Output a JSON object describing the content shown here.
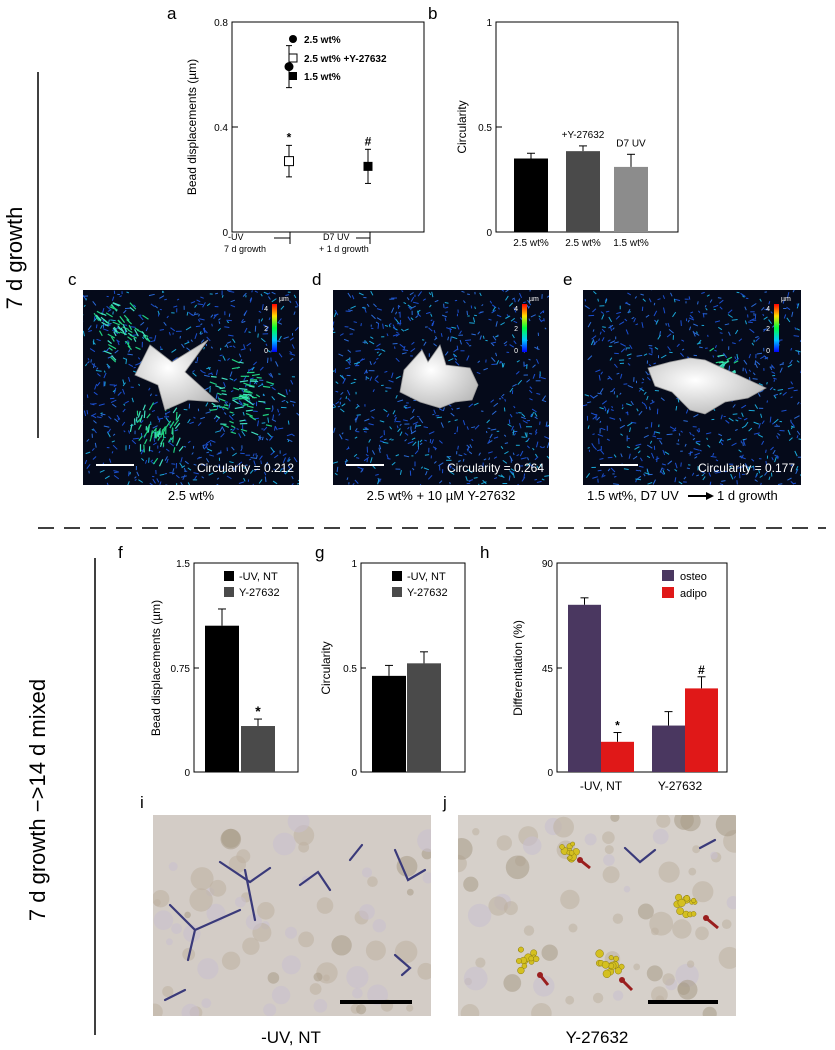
{
  "section_labels": {
    "top": "7 d growth",
    "bottom": "7 d growth −>14 d mixed"
  },
  "panel_letters": [
    "a",
    "b",
    "c",
    "d",
    "e",
    "f",
    "g",
    "h",
    "i",
    "j"
  ],
  "panel_c": {
    "circularity_text": "Circularity = 0.212",
    "caption": "2.5 wt%"
  },
  "panel_d": {
    "circularity_text": "Circularity = 0.264",
    "caption": "2.5 wt% + 10 µM Y-27632"
  },
  "panel_e": {
    "circularity_text": "Circularity = 0.177",
    "caption_main": "1.5 wt%, D7 UV",
    "caption_tail": "1 d growth"
  },
  "colorbar": {
    "unit": "µm",
    "ticks": [
      "4",
      "2",
      "0"
    ]
  },
  "panel_i": {
    "caption": "-UV, NT"
  },
  "panel_j": {
    "caption": "Y-27632"
  },
  "colors": {
    "osteo": "#4a3760",
    "adipo": "#e01818",
    "black": "#000000",
    "dark_gray": "#4a4a4a",
    "light_gray": "#8c8c8c",
    "ecm_purple": "#3a3a7a",
    "lipid_yellow": "#d4c020",
    "arrow_red": "#9a1e1e"
  },
  "chart_data": [
    {
      "panel": "a",
      "type": "scatter",
      "ylabel": "Bead displacements (µm)",
      "ylim": [
        0,
        0.8
      ],
      "yticks": [
        "0",
        "0.4",
        "0.8"
      ],
      "x_group_labels": [
        {
          "line1": "-UV",
          "line2": "7 d growth"
        },
        {
          "line1": "D7 UV",
          "line2": "+ 1 d growth"
        }
      ],
      "series": [
        {
          "name": "2.5 wt%",
          "marker": "filled-circle",
          "group": 0,
          "y": 0.63,
          "err": 0.08,
          "annotation": ""
        },
        {
          "name": "2.5 wt%  +Y-27632",
          "marker": "open-square",
          "group": 0,
          "y": 0.27,
          "err": 0.06,
          "annotation": "*"
        },
        {
          "name": "1.5 wt%",
          "marker": "filled-square",
          "group": 1,
          "y": 0.25,
          "err": 0.065,
          "annotation": "#"
        }
      ]
    },
    {
      "panel": "b",
      "type": "bar",
      "ylabel": "Circularity",
      "ylim": [
        0,
        1
      ],
      "yticks": [
        "0",
        "0.5",
        "1"
      ],
      "categories": [
        "2.5 wt%",
        "2.5 wt%",
        "1.5 wt%"
      ],
      "values": [
        0.35,
        0.385,
        0.31
      ],
      "errors": [
        0.025,
        0.025,
        0.06
      ],
      "bar_annotations": [
        "",
        "+Y-27632",
        "D7 UV"
      ]
    },
    {
      "panel": "f",
      "type": "bar",
      "ylabel": "Bead displacements (µm)",
      "ylim": [
        0,
        1.5
      ],
      "yticks": [
        "0",
        "0.75",
        "1.5"
      ],
      "legend": [
        "-UV, NT",
        "Y-27632"
      ],
      "values": [
        1.05,
        0.33
      ],
      "errors": [
        0.12,
        0.05
      ],
      "bar_annotations": [
        "",
        "*"
      ]
    },
    {
      "panel": "g",
      "type": "bar",
      "ylabel": "Circularity",
      "ylim": [
        0,
        1
      ],
      "yticks": [
        "0",
        "0.5",
        "1"
      ],
      "legend": [
        "-UV, NT",
        "Y-27632"
      ],
      "values": [
        0.46,
        0.52
      ],
      "errors": [
        0.05,
        0.055
      ],
      "bar_annotations": [
        "",
        ""
      ]
    },
    {
      "panel": "h",
      "type": "bar",
      "ylabel": "Differentiation (%)",
      "ylim": [
        0,
        90
      ],
      "yticks": [
        "0",
        "45",
        "90"
      ],
      "categories": [
        "-UV, NT",
        "Y-27632"
      ],
      "series": [
        {
          "name": "osteo",
          "values": [
            72,
            20
          ],
          "errors": [
            3,
            6
          ],
          "annotations": [
            "",
            ""
          ]
        },
        {
          "name": "adipo",
          "values": [
            13,
            36
          ],
          "errors": [
            4,
            5
          ],
          "annotations": [
            "*",
            "#"
          ]
        }
      ]
    }
  ]
}
